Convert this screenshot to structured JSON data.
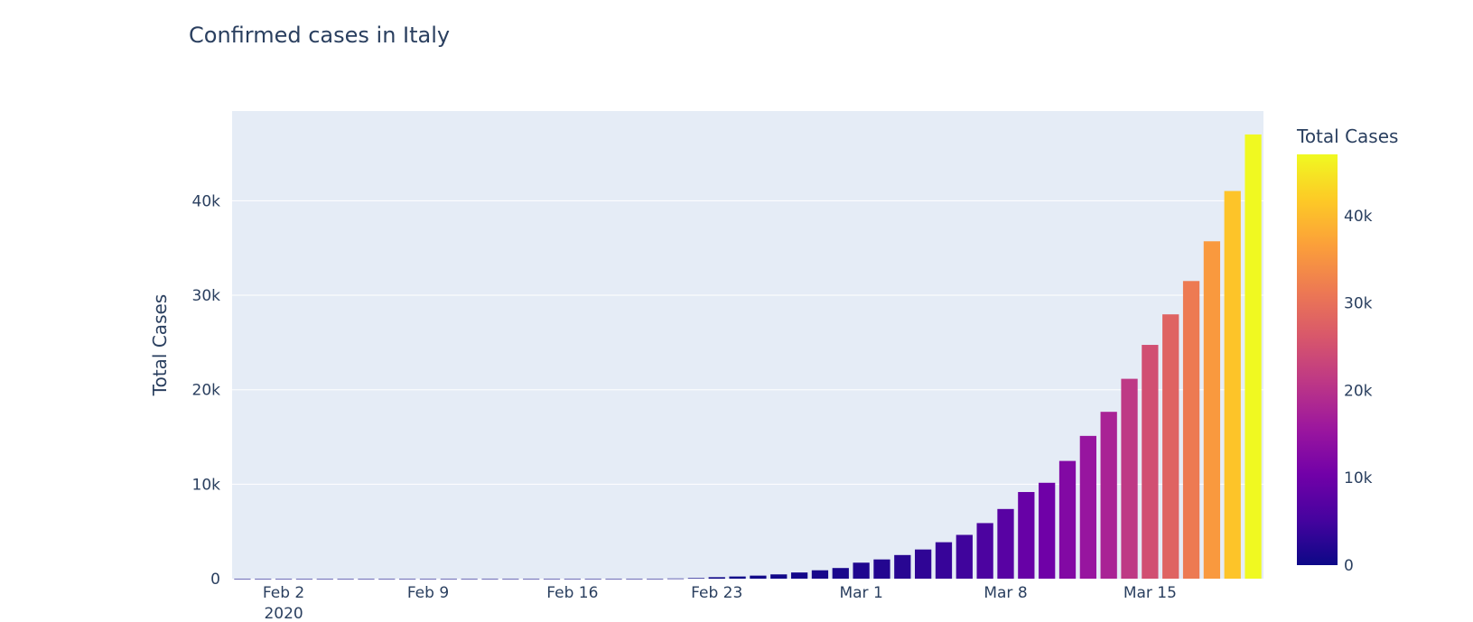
{
  "chart_data": {
    "type": "bar",
    "title": "Confirmed cases in Italy",
    "xlabel": "",
    "ylabel": "Total Cases",
    "x_start_date": "2020-01-31",
    "x": [
      "2020-01-31",
      "2020-02-01",
      "2020-02-02",
      "2020-02-03",
      "2020-02-04",
      "2020-02-05",
      "2020-02-06",
      "2020-02-07",
      "2020-02-08",
      "2020-02-09",
      "2020-02-10",
      "2020-02-11",
      "2020-02-12",
      "2020-02-13",
      "2020-02-14",
      "2020-02-15",
      "2020-02-16",
      "2020-02-17",
      "2020-02-18",
      "2020-02-19",
      "2020-02-20",
      "2020-02-21",
      "2020-02-22",
      "2020-02-23",
      "2020-02-24",
      "2020-02-25",
      "2020-02-26",
      "2020-02-27",
      "2020-02-28",
      "2020-02-29",
      "2020-03-01",
      "2020-03-02",
      "2020-03-03",
      "2020-03-04",
      "2020-03-05",
      "2020-03-06",
      "2020-03-07",
      "2020-03-08",
      "2020-03-09",
      "2020-03-10",
      "2020-03-11",
      "2020-03-12",
      "2020-03-13",
      "2020-03-14",
      "2020-03-15",
      "2020-03-16",
      "2020-03-17",
      "2020-03-18",
      "2020-03-19",
      "2020-03-20"
    ],
    "values": [
      2,
      2,
      2,
      2,
      2,
      2,
      2,
      3,
      3,
      3,
      3,
      3,
      3,
      3,
      3,
      3,
      3,
      3,
      3,
      3,
      3,
      20,
      62,
      155,
      229,
      322,
      453,
      655,
      888,
      1128,
      1694,
      2036,
      2502,
      3089,
      3858,
      4636,
      5883,
      7375,
      9172,
      10149,
      12462,
      15113,
      17660,
      21157,
      24747,
      27980,
      31506,
      35713,
      41035,
      47021
    ],
    "ylim": [
      0,
      49500
    ],
    "yticks": [
      0,
      10000,
      20000,
      30000,
      40000
    ],
    "ytick_labels": [
      "0",
      "10k",
      "20k",
      "30k",
      "40k"
    ],
    "xtick_dates": [
      "2020-02-02",
      "2020-02-09",
      "2020-02-16",
      "2020-02-23",
      "2020-03-01",
      "2020-03-08",
      "2020-03-15"
    ],
    "xtick_labels": [
      "Feb 2",
      "Feb 9",
      "Feb 16",
      "Feb 23",
      "Mar 1",
      "Mar 8",
      "Mar 15"
    ],
    "xtick_sublabel": "2020",
    "colorbar": {
      "title": "Total Cases",
      "range": [
        0,
        47021
      ],
      "ticks": [
        0,
        10000,
        20000,
        30000,
        40000
      ],
      "tick_labels": [
        "0",
        "10k",
        "20k",
        "30k",
        "40k"
      ],
      "colorscale": [
        "#0d0887",
        "#46039f",
        "#7201a8",
        "#9c179e",
        "#bd3786",
        "#d8576b",
        "#ed7953",
        "#fb9f3a",
        "#fdca26",
        "#f0f921"
      ]
    },
    "grid": true,
    "plot_bgcolor": "#e5ecf6",
    "text_color": "#2a3f5f"
  }
}
